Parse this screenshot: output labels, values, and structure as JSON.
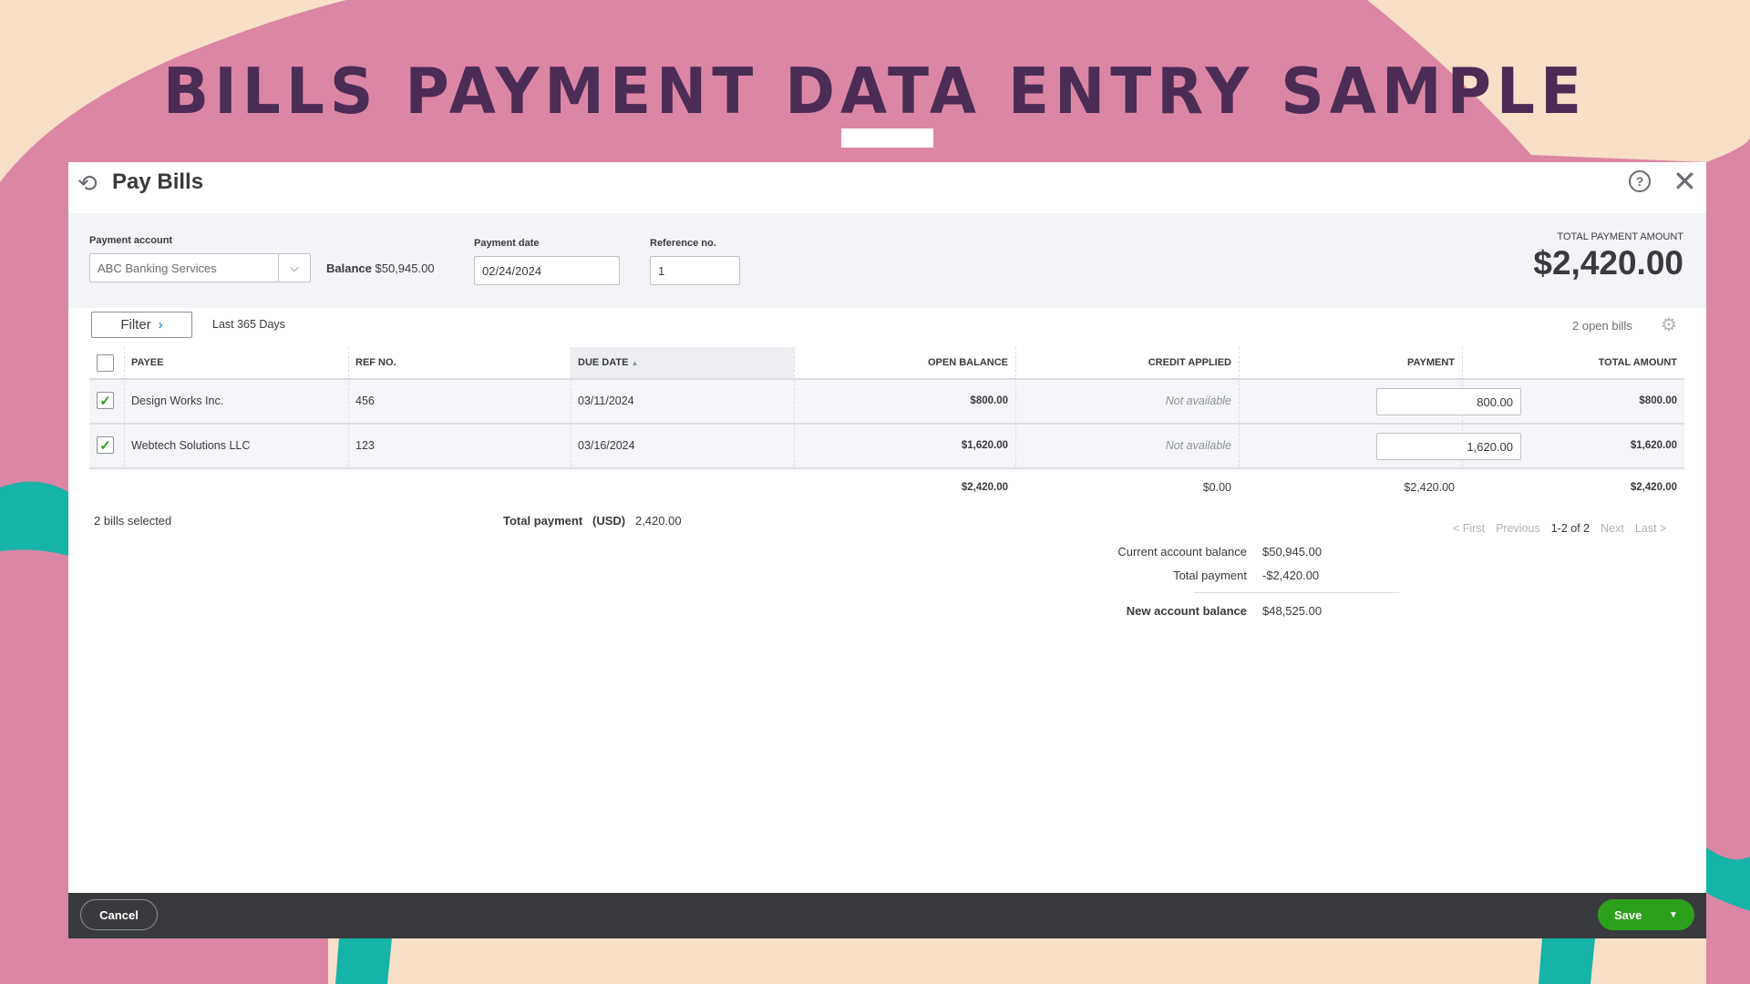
{
  "banner": {
    "title": "BILLS PAYMENT DATA ENTRY SAMPLE"
  },
  "colors": {
    "background": "#f7dfc8",
    "pink": "#dc86a5",
    "teal": "#16b3a8",
    "title": "#4b2c55",
    "save": "#2ca01c",
    "footer": "#393a3d"
  },
  "dialog": {
    "title": "Pay Bills",
    "title_icon": "clock-refresh-icon",
    "payment_account": {
      "label": "Payment account",
      "value": "ABC Banking Services",
      "balance_label": "Balance",
      "balance": "$50,945.00"
    },
    "payment_date": {
      "label": "Payment date",
      "value": "02/24/2024"
    },
    "reference": {
      "label": "Reference no.",
      "value": "1"
    },
    "total_payment_amount": {
      "label": "TOTAL PAYMENT AMOUNT",
      "value": "$2,420.00"
    },
    "filter": {
      "label": "Filter",
      "range": "Last 365 Days"
    },
    "open_bills": "2 open bills",
    "table": {
      "headers": [
        "PAYEE",
        "REF NO.",
        "DUE DATE",
        "OPEN BALANCE",
        "CREDIT APPLIED",
        "PAYMENT",
        "TOTAL AMOUNT"
      ],
      "rows": [
        {
          "checked": true,
          "payee": "Design Works Inc.",
          "ref": "456",
          "due": "03/11/2024",
          "open": "$800.00",
          "credit": "Not available",
          "payment": "800.00",
          "total": "$800.00"
        },
        {
          "checked": true,
          "payee": "Webtech Solutions LLC",
          "ref": "123",
          "due": "03/16/2024",
          "open": "$1,620.00",
          "credit": "Not available",
          "payment": "1,620.00",
          "total": "$1,620.00"
        }
      ],
      "totals": {
        "open": "$2,420.00",
        "credit": "$0.00",
        "payment": "$2,420.00",
        "total": "$2,420.00"
      }
    },
    "bills_selected": "2 bills selected",
    "total_payment": {
      "label": "Total payment",
      "currency": "(USD)",
      "value": "2,420.00"
    },
    "pagination": {
      "first": "< First",
      "previous": "Previous",
      "range": "1-2 of 2",
      "next": "Next",
      "last": "Last >"
    },
    "summary": {
      "current_label": "Current account balance",
      "current": "$50,945.00",
      "payment_label": "Total payment",
      "payment": "-$2,420.00",
      "new_label": "New account balance",
      "new": "$48,525.00"
    },
    "cancel": "Cancel",
    "save": "Save"
  }
}
